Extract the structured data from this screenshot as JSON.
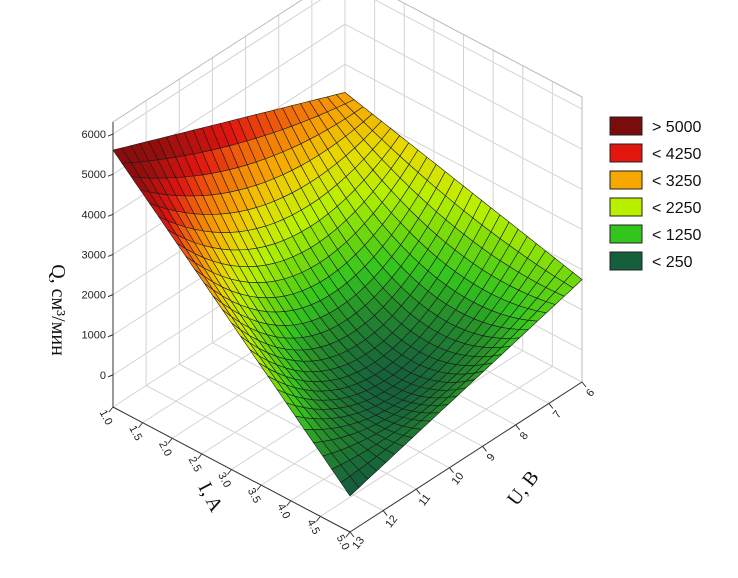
{
  "chart_data": {
    "type": "surface3d",
    "title": "",
    "xlabel": "U, B",
    "ylabel": "I, A",
    "zlabel": "Q, см³/мин",
    "x_ticks": [
      "6",
      "7",
      "8",
      "9",
      "10",
      "11",
      "12",
      "13"
    ],
    "y_ticks": [
      "1.0",
      "1.5",
      "2.0",
      "2.5",
      "3.0",
      "3.5",
      "4.0",
      "4.5",
      "5.0"
    ],
    "z_ticks": [
      "0",
      "1000",
      "2000",
      "3000",
      "4000",
      "5000",
      "6000"
    ],
    "xlim": [
      6,
      13
    ],
    "ylim": [
      1.0,
      5.0
    ],
    "zlim": [
      -800,
      6300
    ],
    "corners": [
      {
        "U": 6,
        "I": 1.0,
        "Q": 3300
      },
      {
        "U": 13,
        "I": 1.0,
        "Q": 5600
      },
      {
        "U": 13,
        "I": 5.0,
        "Q": 100
      },
      {
        "U": 6,
        "I": 5.0,
        "Q": 1750
      },
      {
        "U": 9.5,
        "I": 3.5,
        "Q": 350
      }
    ],
    "legend": {
      "position": "right",
      "items": [
        {
          "label": "> 5000",
          "color": "#7a0c0c"
        },
        {
          "label": "< 4250",
          "color": "#e2150f"
        },
        {
          "label": "< 3250",
          "color": "#f7a800"
        },
        {
          "label": "< 2250",
          "color": "#b8f000"
        },
        {
          "label": "< 1250",
          "color": "#33c51e"
        },
        {
          "label": "< 250",
          "color": "#155f3c"
        }
      ]
    },
    "grid": true
  }
}
